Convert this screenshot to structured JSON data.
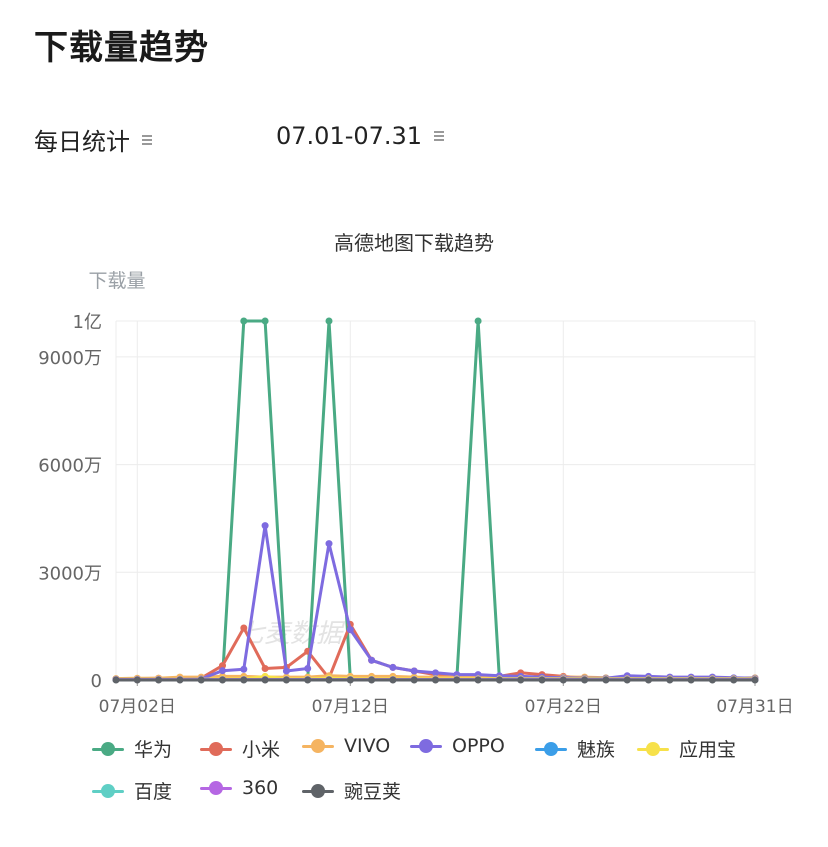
{
  "page": {
    "title": "下载量趋势"
  },
  "filters": {
    "period_label": "每日统计",
    "range_label": "07.01-07.31"
  },
  "chart_data": {
    "type": "line",
    "title": "高德地图下载趋势",
    "ylabel": "下载量",
    "xlabel": "",
    "ylim": [
      0,
      100000000
    ],
    "yticks": [
      {
        "value": 0,
        "label": "0"
      },
      {
        "value": 30000000,
        "label": "3000万"
      },
      {
        "value": 60000000,
        "label": "6000万"
      },
      {
        "value": 90000000,
        "label": "9000万"
      },
      {
        "value": 100000000,
        "label": "1亿"
      }
    ],
    "x": [
      "07月01日",
      "07月02日",
      "07月03日",
      "07月04日",
      "07月05日",
      "07月06日",
      "07月07日",
      "07月08日",
      "07月09日",
      "07月10日",
      "07月11日",
      "07月12日",
      "07月13日",
      "07月14日",
      "07月15日",
      "07月16日",
      "07月17日",
      "07月18日",
      "07月19日",
      "07月20日",
      "07月21日",
      "07月22日",
      "07月23日",
      "07月24日",
      "07月25日",
      "07月26日",
      "07月27日",
      "07月28日",
      "07月29日",
      "07月30日",
      "07月31日"
    ],
    "xtick_labels": [
      {
        "index": 1,
        "label": "07月02日"
      },
      {
        "index": 11,
        "label": "07月12日"
      },
      {
        "index": 21,
        "label": "07月22日"
      },
      {
        "index": 30,
        "label": "07月31日"
      }
    ],
    "grid": true,
    "legend_position": "bottom",
    "watermark": "七麦数据",
    "series": [
      {
        "name": "华为",
        "color": "#4aaa84",
        "values": [
          300000,
          300000,
          300000,
          300000,
          300000,
          500000,
          100000000,
          100000000,
          300000,
          300000,
          100000000,
          500000,
          300000,
          300000,
          300000,
          300000,
          300000,
          100000000,
          300000,
          300000,
          300000,
          300000,
          300000,
          300000,
          300000,
          300000,
          300000,
          300000,
          300000,
          300000,
          300000
        ]
      },
      {
        "name": "小米",
        "color": "#e06b5a",
        "values": [
          300000,
          400000,
          500000,
          500000,
          500000,
          4000000,
          14500000,
          3200000,
          3500000,
          8000000,
          500000,
          15500000,
          5500000,
          3500000,
          2500000,
          1500000,
          1200000,
          1000000,
          1000000,
          2000000,
          1500000,
          1000000,
          500000,
          500000,
          600000,
          500000,
          500000,
          500000,
          500000,
          500000,
          500000
        ]
      },
      {
        "name": "VIVO",
        "color": "#f5b461",
        "values": [
          400000,
          500000,
          500000,
          800000,
          800000,
          1000000,
          1000000,
          800000,
          800000,
          800000,
          1200000,
          1000000,
          1000000,
          1000000,
          800000,
          800000,
          800000,
          600000,
          600000,
          600000,
          600000,
          800000,
          800000,
          600000,
          500000,
          500000,
          500000,
          500000,
          500000,
          500000,
          600000
        ]
      },
      {
        "name": "OPPO",
        "color": "#7e6be0",
        "values": [
          200000,
          200000,
          200000,
          200000,
          300000,
          2600000,
          3000000,
          43000000,
          2500000,
          3200000,
          38000000,
          14000000,
          5500000,
          3500000,
          2500000,
          2000000,
          1500000,
          1500000,
          1200000,
          1000000,
          800000,
          600000,
          500000,
          500000,
          1200000,
          1000000,
          800000,
          800000,
          800000,
          600000,
          500000
        ]
      },
      {
        "name": "魅族",
        "color": "#3b9ee8",
        "values": [
          100000,
          100000,
          100000,
          100000,
          100000,
          100000,
          100000,
          100000,
          100000,
          100000,
          100000,
          100000,
          100000,
          100000,
          100000,
          100000,
          100000,
          100000,
          100000,
          100000,
          100000,
          100000,
          100000,
          100000,
          100000,
          100000,
          100000,
          100000,
          100000,
          100000,
          100000
        ]
      },
      {
        "name": "应用宝",
        "color": "#f7e14a",
        "values": [
          200000,
          200000,
          200000,
          200000,
          200000,
          300000,
          300000,
          1000000,
          300000,
          300000,
          500000,
          400000,
          300000,
          300000,
          300000,
          300000,
          300000,
          300000,
          300000,
          300000,
          300000,
          300000,
          300000,
          300000,
          300000,
          300000,
          300000,
          300000,
          300000,
          300000,
          300000
        ]
      },
      {
        "name": "百度",
        "color": "#5fcfc5",
        "values": [
          100000,
          100000,
          100000,
          100000,
          100000,
          100000,
          100000,
          100000,
          100000,
          100000,
          100000,
          100000,
          100000,
          100000,
          100000,
          100000,
          100000,
          100000,
          100000,
          100000,
          100000,
          100000,
          100000,
          100000,
          100000,
          100000,
          100000,
          100000,
          100000,
          100000,
          100000
        ]
      },
      {
        "name": "360",
        "color": "#b567e3",
        "values": [
          100000,
          100000,
          100000,
          100000,
          100000,
          100000,
          100000,
          100000,
          100000,
          100000,
          100000,
          100000,
          100000,
          100000,
          100000,
          100000,
          100000,
          100000,
          100000,
          100000,
          100000,
          100000,
          100000,
          100000,
          100000,
          100000,
          100000,
          100000,
          100000,
          100000,
          100000
        ]
      },
      {
        "name": "豌豆荚",
        "color": "#5f6368",
        "values": [
          0,
          0,
          0,
          0,
          0,
          0,
          0,
          0,
          0,
          0,
          0,
          0,
          0,
          0,
          0,
          0,
          0,
          0,
          0,
          0,
          0,
          0,
          0,
          0,
          0,
          0,
          0,
          0,
          0,
          0,
          0
        ]
      }
    ]
  }
}
